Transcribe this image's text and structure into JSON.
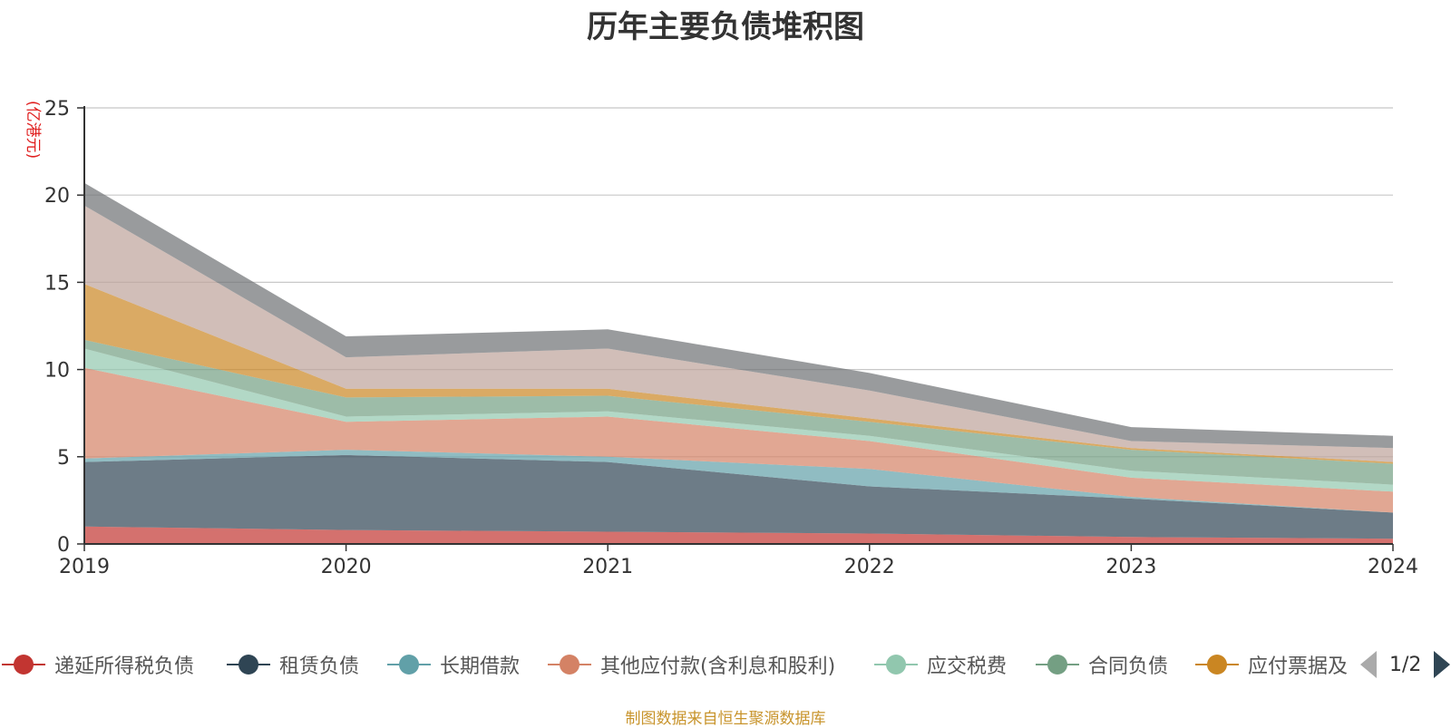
{
  "chart_data": {
    "type": "area",
    "stacked": true,
    "title": "历年主要负债堆积图",
    "ylabel": "(亿港元)",
    "ylim": [
      0,
      25
    ],
    "yticks": [
      0,
      5,
      10,
      15,
      20,
      25
    ],
    "x": [
      "2019",
      "2020",
      "2021",
      "2022",
      "2023",
      "2024"
    ],
    "grid": true,
    "legend_position": "bottom",
    "series": [
      {
        "name": "递延所得税负债",
        "color": "#c23531",
        "values": [
          1.0,
          0.8,
          0.7,
          0.6,
          0.4,
          0.3
        ]
      },
      {
        "name": "租赁负债",
        "color": "#2f4554",
        "values": [
          3.7,
          4.3,
          4.0,
          2.7,
          2.2,
          1.5
        ]
      },
      {
        "name": "长期借款",
        "color": "#61a0a8",
        "values": [
          0.2,
          0.3,
          0.3,
          1.0,
          0.1,
          0.0
        ]
      },
      {
        "name": "其他应付款(含利息和股利)",
        "color": "#d48265",
        "values": [
          5.2,
          1.6,
          2.3,
          1.6,
          1.1,
          1.2
        ]
      },
      {
        "name": "应交税费",
        "color": "#91c7ae",
        "values": [
          1.1,
          0.3,
          0.3,
          0.3,
          0.4,
          0.4
        ]
      },
      {
        "name": "合同负债",
        "color": "#749f83",
        "values": [
          0.5,
          1.1,
          0.9,
          0.8,
          1.2,
          1.2
        ]
      },
      {
        "name": "应付票据及应付账款",
        "color": "#ca8622",
        "values": [
          3.2,
          0.5,
          0.4,
          0.2,
          0.1,
          0.1
        ]
      },
      {
        "name": "",
        "color": "#bda29a",
        "values": [
          4.5,
          1.8,
          2.3,
          1.6,
          0.4,
          0.8
        ]
      },
      {
        "name": "",
        "color": "#6e7074",
        "values": [
          1.3,
          1.2,
          1.1,
          1.0,
          0.8,
          0.7
        ]
      }
    ]
  },
  "legend": {
    "items": [
      {
        "label": "递延所得税负债",
        "color": "#c23531"
      },
      {
        "label": "租赁负债",
        "color": "#2f4554"
      },
      {
        "label": "长期借款",
        "color": "#61a0a8"
      },
      {
        "label": "其他应付款(含利息和股利)",
        "color": "#d48265"
      },
      {
        "label": "应交税费",
        "color": "#91c7ae"
      },
      {
        "label": "合同负债",
        "color": "#749f83"
      },
      {
        "label": "应付票据及应付账款",
        "color": "#ca8622"
      }
    ],
    "page": "1/2"
  },
  "source_note": "制图数据来自恒生聚源数据库"
}
